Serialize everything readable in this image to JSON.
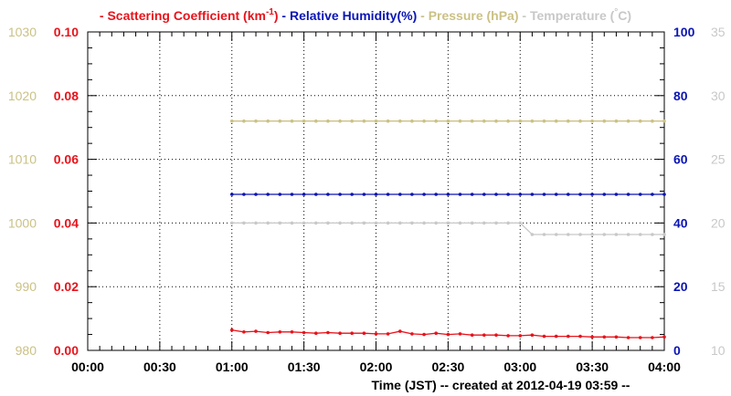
{
  "chart_data": {
    "type": "line",
    "legend": [
      {
        "dash": "-",
        "text": "Scattering Coefficient (km",
        "sup": "-1",
        "close": ")",
        "color": "#e8131b"
      },
      {
        "dash": "-",
        "text": "Relative Humidity(%)",
        "color": "#0b15b5"
      },
      {
        "dash": "-",
        "text": "Pressure (hPa)",
        "color": "#cbc185"
      },
      {
        "dash": "-",
        "text": "Temperature (",
        "deg": "°",
        "close": "C)",
        "color": "#c8c8c8"
      }
    ],
    "x_ticks": [
      "00:00",
      "00:30",
      "01:00",
      "01:30",
      "02:00",
      "02:30",
      "03:00",
      "03:30",
      "04:00"
    ],
    "xlabel": "Time (JST)  -- created at 2012-04-19 03:59 --",
    "xlim_minutes": [
      0,
      240
    ],
    "grid": true,
    "axes": {
      "pressure": {
        "ticks": [
          "1030",
          "1020",
          "1010",
          "1000",
          "990",
          "980"
        ],
        "range": [
          980,
          1030
        ],
        "color": "#cbc185"
      },
      "scattering": {
        "ticks": [
          "0.10",
          "0.08",
          "0.06",
          "0.04",
          "0.02",
          "0.00"
        ],
        "range": [
          0,
          0.1
        ],
        "color": "#e8131b"
      },
      "humidity": {
        "ticks": [
          "100",
          "80",
          "60",
          "40",
          "20",
          "0"
        ],
        "range": [
          0,
          100
        ],
        "color": "#0b15b5"
      },
      "temperature": {
        "ticks": [
          "35",
          "30",
          "25",
          "20",
          "15",
          "10"
        ],
        "range": [
          10,
          35
        ],
        "color": "#c8c8c8"
      }
    },
    "series": [
      {
        "name": "Scattering Coefficient",
        "axis": "scattering",
        "color": "#e8131b",
        "start_minute": 60,
        "step_minutes": 5,
        "values": [
          0.0064,
          0.0058,
          0.006,
          0.0056,
          0.0058,
          0.0058,
          0.0056,
          0.0054,
          0.0056,
          0.0054,
          0.0054,
          0.0054,
          0.0052,
          0.0052,
          0.006,
          0.0052,
          0.005,
          0.0054,
          0.005,
          0.0052,
          0.0048,
          0.0048,
          0.0048,
          0.0046,
          0.0046,
          0.0048,
          0.0044,
          0.0044,
          0.0044,
          0.0044,
          0.0042,
          0.0042,
          0.0042,
          0.004,
          0.004,
          0.004,
          0.0042
        ]
      },
      {
        "name": "Relative Humidity",
        "axis": "humidity",
        "color": "#0b15b5",
        "start_minute": 60,
        "step_minutes": 5,
        "values": [
          49,
          49,
          49,
          49,
          49,
          49,
          49,
          49,
          49,
          49,
          49,
          49,
          49,
          49,
          49,
          49,
          49,
          49,
          49,
          49,
          49,
          49,
          49,
          49,
          49,
          49,
          49,
          49,
          49,
          49,
          49,
          49,
          49,
          49,
          49,
          49,
          49
        ]
      },
      {
        "name": "Pressure",
        "axis": "pressure",
        "color": "#cbc185",
        "start_minute": 60,
        "step_minutes": 5,
        "values": [
          1016,
          1016,
          1016,
          1016,
          1016,
          1016,
          1016,
          1016,
          1016,
          1016,
          1016,
          1016,
          1016,
          1016,
          1016,
          1016,
          1016,
          1016,
          1016,
          1016,
          1016,
          1016,
          1016,
          1016,
          1016,
          1016,
          1016,
          1016,
          1016,
          1016,
          1016,
          1016,
          1016,
          1016,
          1016,
          1016,
          1016
        ]
      },
      {
        "name": "Temperature",
        "axis": "temperature",
        "color": "#c8c8c8",
        "start_minute": 60,
        "step_minutes": 5,
        "values": [
          20,
          20,
          20,
          20,
          20,
          20,
          20,
          20,
          20,
          20,
          20,
          20,
          20,
          20,
          20,
          20,
          20,
          20,
          20,
          20,
          20,
          20,
          20,
          20,
          20,
          19.1,
          19.1,
          19.1,
          19.1,
          19.1,
          19.1,
          19.1,
          19.1,
          19.1,
          19.1,
          19.1,
          19.1
        ]
      }
    ]
  }
}
